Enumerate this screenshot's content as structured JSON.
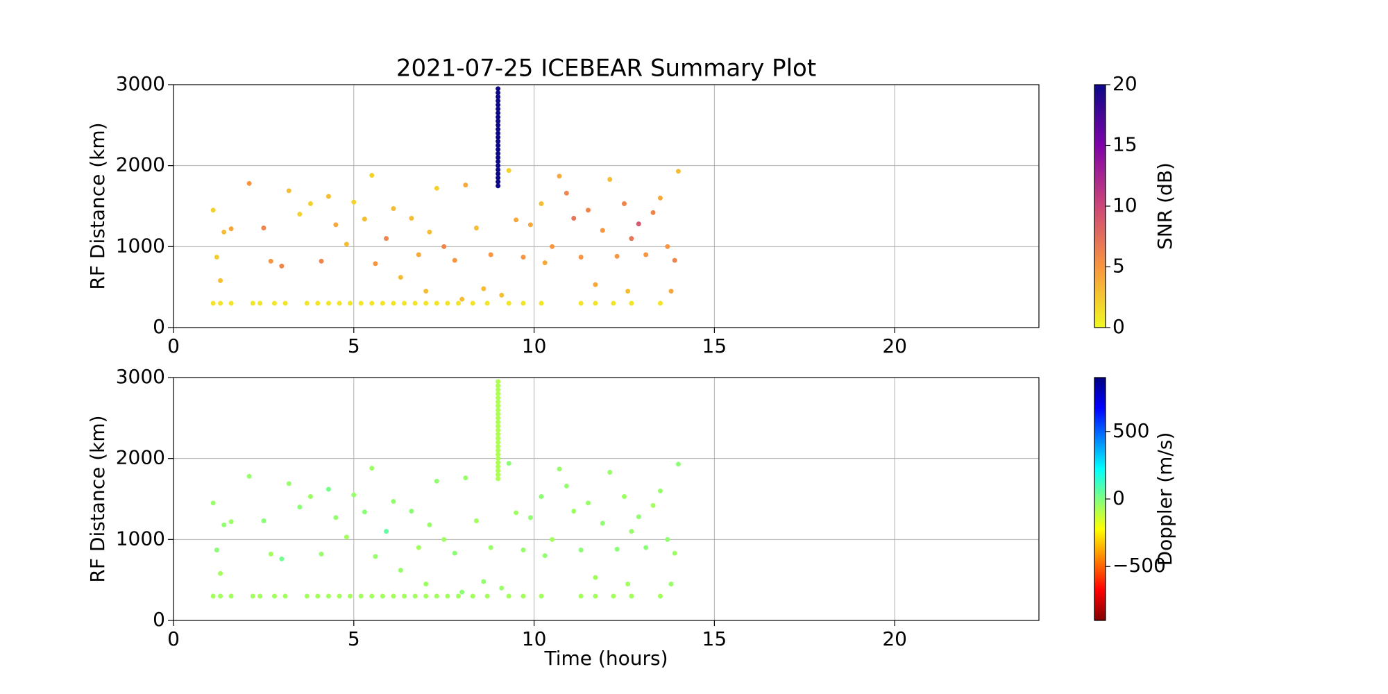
{
  "chart_data": [
    {
      "type": "scatter",
      "title": "2021-07-25 ICEBEAR Summary Plot",
      "ylabel": "RF Distance (km)",
      "x": [
        1.1,
        1.3,
        1.6,
        2.2,
        2.4,
        2.8,
        3.1,
        3.7,
        4.0,
        4.3,
        4.6,
        4.9,
        5.2,
        5.5,
        5.8,
        6.1,
        6.4,
        6.7,
        7.0,
        7.3,
        7.6,
        7.9,
        8.3,
        8.7,
        9.3,
        9.7,
        10.2,
        11.3,
        11.7,
        12.2,
        12.7,
        13.5,
        1.1,
        1.2,
        1.3,
        1.4,
        1.6,
        2.1,
        2.5,
        2.7,
        3.0,
        3.2,
        3.5,
        3.8,
        4.1,
        4.3,
        4.5,
        4.8,
        5.0,
        5.3,
        5.5,
        5.6,
        5.9,
        6.1,
        6.3,
        6.6,
        6.8,
        7.1,
        7.3,
        7.5,
        7.8,
        8.1,
        8.4,
        8.6,
        8.8,
        9.3,
        9.5,
        9.7,
        9.9,
        10.2,
        10.5,
        10.7,
        10.9,
        11.1,
        11.3,
        11.5,
        11.7,
        11.9,
        12.1,
        12.3,
        12.5,
        12.7,
        12.9,
        13.1,
        13.3,
        13.5,
        13.7,
        13.9,
        14.0,
        13.8,
        12.6,
        10.3,
        9.1,
        8.0,
        7.0,
        9,
        9,
        9,
        9,
        9,
        9,
        9,
        9,
        9,
        9,
        9,
        9,
        9,
        9,
        9,
        9,
        9,
        9,
        9,
        9,
        9,
        9,
        9,
        9,
        9
      ],
      "y": [
        300,
        300,
        300,
        300,
        300,
        300,
        300,
        300,
        300,
        300,
        300,
        300,
        300,
        300,
        300,
        300,
        300,
        300,
        300,
        300,
        300,
        300,
        300,
        300,
        300,
        300,
        300,
        300,
        300,
        300,
        300,
        300,
        1450,
        870,
        580,
        1180,
        1220,
        1780,
        1230,
        820,
        760,
        1690,
        1400,
        1530,
        820,
        1620,
        1270,
        1030,
        1550,
        1340,
        1880,
        790,
        1100,
        1470,
        620,
        1350,
        900,
        1180,
        1720,
        1000,
        830,
        1760,
        1230,
        480,
        900,
        1940,
        1330,
        870,
        1270,
        1530,
        1000,
        1870,
        1660,
        1350,
        870,
        1450,
        530,
        1200,
        1830,
        880,
        1530,
        1100,
        1280,
        900,
        1420,
        1600,
        1000,
        830,
        1930,
        450,
        450,
        800,
        400,
        350,
        450,
        1750,
        1800,
        1850,
        1900,
        1950,
        2000,
        2050,
        2100,
        2150,
        2200,
        2250,
        2300,
        2350,
        2400,
        2450,
        2500,
        2550,
        2600,
        2650,
        2700,
        2750,
        2800,
        2850,
        2900,
        2950
      ],
      "c": [
        1,
        1,
        1,
        1,
        1,
        1,
        1,
        1,
        1,
        1,
        1,
        1,
        1,
        1,
        1,
        1,
        1,
        1,
        1,
        1,
        1,
        1,
        1,
        1,
        1,
        1,
        1,
        1,
        1,
        1,
        1,
        1,
        2,
        2,
        3,
        3,
        4,
        5,
        6,
        5,
        6,
        3,
        2,
        2,
        6,
        3,
        4,
        3,
        2,
        3,
        2,
        5,
        6,
        3,
        3,
        3,
        4,
        3,
        2,
        6,
        5,
        4,
        3,
        3,
        5,
        2,
        4,
        5,
        4,
        3,
        5,
        4,
        6,
        7,
        5,
        6,
        4,
        5,
        3,
        5,
        6,
        7,
        9,
        5,
        6,
        4,
        5,
        6,
        3,
        4,
        3,
        4,
        3,
        3,
        3,
        20,
        20,
        20,
        20,
        20,
        20,
        20,
        20,
        20,
        20,
        20,
        20,
        20,
        20,
        20,
        20,
        20,
        20,
        20,
        20,
        20,
        20,
        20,
        20,
        20
      ],
      "xlim": [
        0,
        24
      ],
      "xticks": [
        0,
        5,
        10,
        15,
        20
      ],
      "ylim": [
        0,
        3000
      ],
      "yticks": [
        0,
        1000,
        2000,
        3000
      ],
      "grid": true,
      "colorbar": {
        "label": "SNR (dB)",
        "lim": [
          0,
          20
        ],
        "ticks": [
          0,
          5,
          10,
          15,
          20
        ],
        "colormap": "plasma_r"
      }
    },
    {
      "type": "scatter",
      "ylabel": "RF Distance (km)",
      "xlabel": "Time (hours)",
      "x": [
        1.1,
        1.3,
        1.6,
        2.2,
        2.4,
        2.8,
        3.1,
        3.7,
        4.0,
        4.3,
        4.6,
        4.9,
        5.2,
        5.5,
        5.8,
        6.1,
        6.4,
        6.7,
        7.0,
        7.3,
        7.6,
        7.9,
        8.3,
        8.7,
        9.3,
        9.7,
        10.2,
        11.3,
        11.7,
        12.2,
        12.7,
        13.5,
        1.1,
        1.2,
        1.3,
        1.4,
        1.6,
        2.1,
        2.5,
        2.7,
        3.0,
        3.2,
        3.5,
        3.8,
        4.1,
        4.3,
        4.5,
        4.8,
        5.0,
        5.3,
        5.5,
        5.6,
        5.9,
        6.1,
        6.3,
        6.6,
        6.8,
        7.1,
        7.3,
        7.5,
        7.8,
        8.1,
        8.4,
        8.6,
        8.8,
        9.3,
        9.5,
        9.7,
        9.9,
        10.2,
        10.5,
        10.7,
        10.9,
        11.1,
        11.3,
        11.5,
        11.7,
        11.9,
        12.1,
        12.3,
        12.5,
        12.7,
        12.9,
        13.1,
        13.3,
        13.5,
        13.7,
        13.9,
        14.0,
        13.8,
        12.6,
        10.3,
        9.1,
        8.0,
        7.0,
        9,
        9,
        9,
        9,
        9,
        9,
        9,
        9,
        9,
        9,
        9,
        9,
        9,
        9,
        9,
        9,
        9,
        9,
        9,
        9,
        9,
        9,
        9,
        9,
        9
      ],
      "y": [
        300,
        300,
        300,
        300,
        300,
        300,
        300,
        300,
        300,
        300,
        300,
        300,
        300,
        300,
        300,
        300,
        300,
        300,
        300,
        300,
        300,
        300,
        300,
        300,
        300,
        300,
        300,
        300,
        300,
        300,
        300,
        300,
        1450,
        870,
        580,
        1180,
        1220,
        1780,
        1230,
        820,
        760,
        1690,
        1400,
        1530,
        820,
        1620,
        1270,
        1030,
        1550,
        1340,
        1880,
        790,
        1100,
        1470,
        620,
        1350,
        900,
        1180,
        1720,
        1000,
        830,
        1760,
        1230,
        480,
        900,
        1940,
        1330,
        870,
        1270,
        1530,
        1000,
        1870,
        1660,
        1350,
        870,
        1450,
        530,
        1200,
        1830,
        880,
        1530,
        1100,
        1280,
        900,
        1420,
        1600,
        1000,
        830,
        1930,
        450,
        450,
        800,
        400,
        350,
        450,
        1750,
        1800,
        1850,
        1900,
        1950,
        2000,
        2050,
        2100,
        2150,
        2200,
        2250,
        2300,
        2350,
        2400,
        2450,
        2500,
        2550,
        2600,
        2650,
        2700,
        2750,
        2800,
        2850,
        2900,
        2950
      ],
      "c": [
        -60,
        -60,
        -60,
        -60,
        -60,
        -60,
        -60,
        -60,
        -60,
        -60,
        -60,
        -60,
        -60,
        -60,
        -60,
        -60,
        -60,
        -60,
        -60,
        -60,
        -60,
        -60,
        -60,
        -60,
        -60,
        -60,
        -60,
        -60,
        -60,
        -60,
        -60,
        -60,
        -40,
        -20,
        -60,
        -30,
        -50,
        -40,
        -20,
        -60,
        30,
        -40,
        -20,
        -50,
        -40,
        20,
        -30,
        -60,
        -40,
        -20,
        -50,
        -40,
        60,
        -30,
        -40,
        -20,
        -60,
        -40,
        -30,
        -50,
        -20,
        -40,
        -60,
        -30,
        -40,
        -20,
        -50,
        -40,
        -30,
        -20,
        -60,
        -40,
        -30,
        -50,
        -20,
        -40,
        -60,
        -30,
        -40,
        -20,
        -50,
        -40,
        -30,
        -20,
        -60,
        -40,
        -30,
        -50,
        -20,
        -40,
        -60,
        -30,
        -40,
        -20,
        -50,
        -80,
        -80,
        -80,
        -80,
        -80,
        -80,
        -80,
        -80,
        -80,
        -80,
        -80,
        -80,
        -80,
        -80,
        -80,
        -80,
        -80,
        -80,
        -80,
        -80,
        -80,
        -80,
        -80,
        -80,
        -80
      ],
      "xlim": [
        0,
        24
      ],
      "xticks": [
        0,
        5,
        10,
        15,
        20
      ],
      "ylim": [
        0,
        3000
      ],
      "yticks": [
        0,
        1000,
        2000,
        3000
      ],
      "grid": true,
      "colorbar": {
        "label": "Doppler (m/s)",
        "lim": [
          -900,
          900
        ],
        "ticks": [
          {
            "value": -500,
            "label": "−500"
          },
          0,
          500
        ],
        "colormap": "jet_r"
      }
    }
  ]
}
